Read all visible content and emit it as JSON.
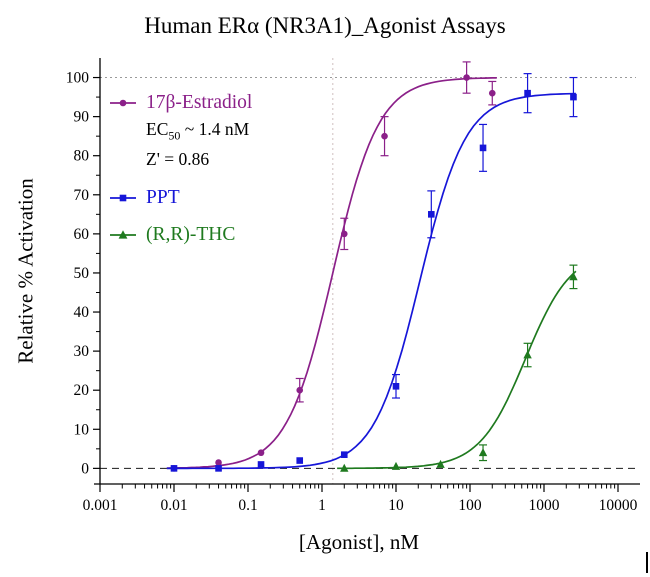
{
  "chart_data": {
    "type": "scatter",
    "title": "Human ERα (NR3A1)_Agonist Assays",
    "xlabel": "[Agonist], nM",
    "ylabel": "Relative % Activation",
    "x_scale": "log",
    "xlim": [
      0.001,
      10000
    ],
    "ylim": [
      0,
      100
    ],
    "x_ticks": [
      "0.001",
      "0.01",
      "0.1",
      "1",
      "10",
      "100",
      "1000",
      "10000"
    ],
    "y_ticks": [
      "0",
      "10",
      "20",
      "30",
      "40",
      "50",
      "60",
      "70",
      "80",
      "90",
      "100"
    ],
    "grid": false,
    "legend_position": "upper-left",
    "reference_lines": {
      "h_dotted_y": 100,
      "h_dashed_y": 0,
      "v_dotted_x": 1.4
    },
    "series": [
      {
        "name": "17β-Estradiol",
        "color": "#8B2089",
        "marker": "circle",
        "ec50_prefix": "EC",
        "ec50_sub": "50",
        "ec50_suffix": " ~ 1.4 nM",
        "z_label": "Z' = 0.86",
        "fit": {
          "bottom": 0,
          "top": 100,
          "ec50": 1.4,
          "hill": 1.4
        },
        "curve_range": [
          0.008,
          230
        ],
        "points": [
          {
            "x": 0.01,
            "y": 0,
            "err": 0
          },
          {
            "x": 0.04,
            "y": 1.5,
            "err": 0
          },
          {
            "x": 0.15,
            "y": 4,
            "err": 0
          },
          {
            "x": 0.5,
            "y": 20,
            "err": 3
          },
          {
            "x": 2,
            "y": 60,
            "err": 4
          },
          {
            "x": 7,
            "y": 85,
            "err": 5
          },
          {
            "x": 90,
            "y": 100,
            "err": 4
          },
          {
            "x": 200,
            "y": 96,
            "err": 3
          }
        ]
      },
      {
        "name": "PPT",
        "color": "#1616D8",
        "marker": "square",
        "fit": {
          "bottom": 0,
          "top": 96,
          "ec50": 21,
          "hill": 1.4
        },
        "curve_range": [
          0.008,
          2700
        ],
        "points": [
          {
            "x": 0.01,
            "y": 0,
            "err": 0
          },
          {
            "x": 0.04,
            "y": 0,
            "err": 0
          },
          {
            "x": 0.15,
            "y": 1,
            "err": 0
          },
          {
            "x": 0.5,
            "y": 2,
            "err": 0
          },
          {
            "x": 2,
            "y": 3.5,
            "err": 0
          },
          {
            "x": 10,
            "y": 21,
            "err": 3
          },
          {
            "x": 30,
            "y": 65,
            "err": 6
          },
          {
            "x": 150,
            "y": 82,
            "err": 6
          },
          {
            "x": 600,
            "y": 96,
            "err": 5
          },
          {
            "x": 2500,
            "y": 95,
            "err": 5
          }
        ]
      },
      {
        "name": "(R,R)-THC",
        "color": "#1F7A1F",
        "marker": "triangle",
        "fit": {
          "bottom": 0,
          "top": 56,
          "ec50": 560,
          "hill": 1.4
        },
        "curve_range": [
          1.6,
          2700
        ],
        "points": [
          {
            "x": 2,
            "y": 0,
            "err": 0
          },
          {
            "x": 10,
            "y": 0.5,
            "err": 0
          },
          {
            "x": 40,
            "y": 1,
            "err": 0
          },
          {
            "x": 150,
            "y": 4,
            "err": 2
          },
          {
            "x": 600,
            "y": 29,
            "err": 3
          },
          {
            "x": 2500,
            "y": 49,
            "err": 3
          }
        ]
      }
    ]
  }
}
